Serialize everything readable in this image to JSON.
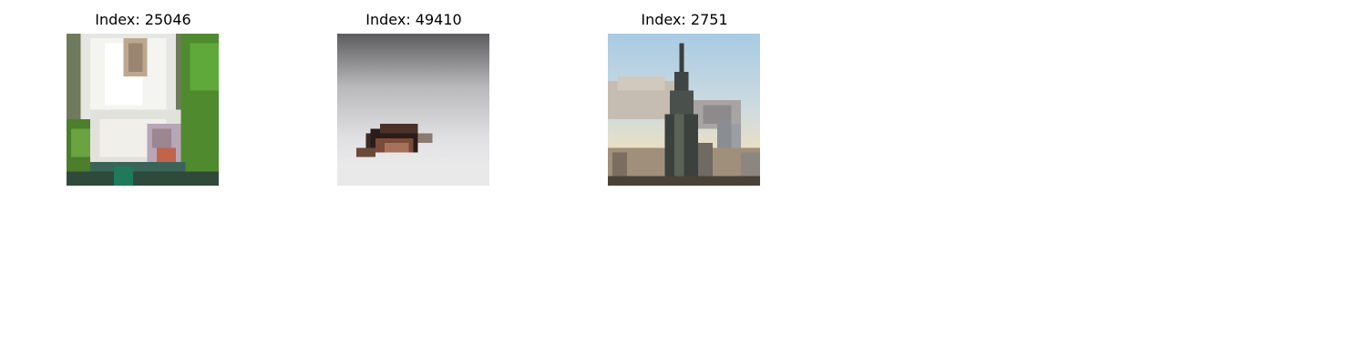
{
  "figure": {
    "panels": [
      {
        "title": "Index: 25046",
        "subject": "white toilet seen from above on green grass"
      },
      {
        "title": "Index: 49410",
        "subject": "small animal on pale snowy ground"
      },
      {
        "title": "Index: 2751",
        "subject": "tall skyscraper with smoke on the skyline"
      }
    ]
  }
}
